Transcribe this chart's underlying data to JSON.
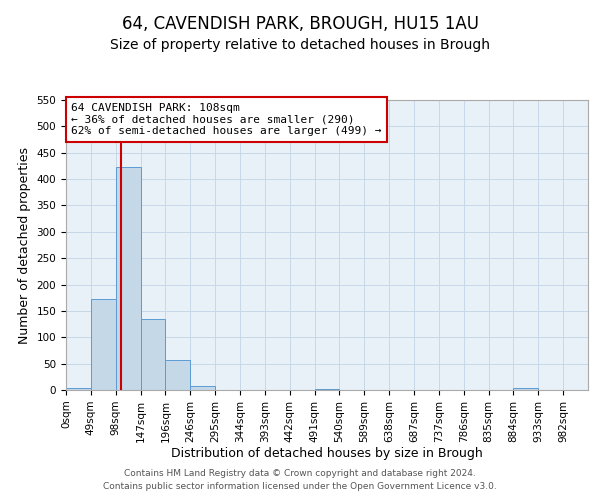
{
  "title": "64, CAVENDISH PARK, BROUGH, HU15 1AU",
  "subtitle": "Size of property relative to detached houses in Brough",
  "xlabel": "Distribution of detached houses by size in Brough",
  "ylabel": "Number of detached properties",
  "bin_edges": [
    0,
    49,
    98,
    147,
    196,
    245,
    294,
    343,
    392,
    441,
    490,
    539,
    588,
    637,
    686,
    735,
    784,
    833,
    882,
    931,
    980
  ],
  "bar_heights": [
    3,
    172,
    422,
    134,
    57,
    8,
    0,
    0,
    0,
    0,
    2,
    0,
    0,
    0,
    0,
    0,
    0,
    0,
    3,
    0
  ],
  "tick_labels": [
    "0sqm",
    "49sqm",
    "98sqm",
    "147sqm",
    "196sqm",
    "246sqm",
    "295sqm",
    "344sqm",
    "393sqm",
    "442sqm",
    "491sqm",
    "540sqm",
    "589sqm",
    "638sqm",
    "687sqm",
    "737sqm",
    "786sqm",
    "835sqm",
    "884sqm",
    "933sqm",
    "982sqm"
  ],
  "bar_color": "#c5d8e8",
  "bar_edge_color": "#5b9bd5",
  "grid_color": "#c8d8e8",
  "background_color": "#e8f0f8",
  "vline_x": 108,
  "vline_color": "#cc0000",
  "annotation_line1": "64 CAVENDISH PARK: 108sqm",
  "annotation_line2": "← 36% of detached houses are smaller (290)",
  "annotation_line3": "62% of semi-detached houses are larger (499) →",
  "ylim": [
    0,
    550
  ],
  "yticks": [
    0,
    50,
    100,
    150,
    200,
    250,
    300,
    350,
    400,
    450,
    500,
    550
  ],
  "footer_line1": "Contains HM Land Registry data © Crown copyright and database right 2024.",
  "footer_line2": "Contains public sector information licensed under the Open Government Licence v3.0.",
  "title_fontsize": 12,
  "subtitle_fontsize": 10,
  "axis_label_fontsize": 9,
  "tick_fontsize": 7.5,
  "annotation_fontsize": 8,
  "footer_fontsize": 6.5
}
